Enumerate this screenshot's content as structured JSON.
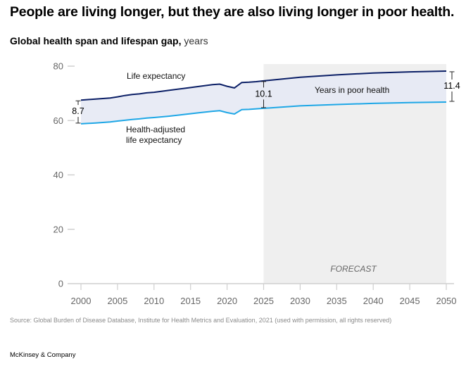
{
  "title": "People are living longer, but they are also living longer in poor health.",
  "subtitle": {
    "bold": "Global health span and lifespan gap,",
    "unit": " years"
  },
  "source": "Source: Global Burden of Disease Database, Institute for Health Metrics and Evaluation, 2021 (used with permission, all rights reserved)",
  "brand": "McKinsey & Company",
  "colors": {
    "life_expectancy": "#0b1f66",
    "hale": "#1ea7e6",
    "gap_fill": "#e6e9f4",
    "forecast_bg": "#efefef"
  },
  "chart_data": {
    "type": "area",
    "title": "Global health span and lifespan gap",
    "xlabel": "",
    "ylabel": "years",
    "xlim": [
      2000,
      2050
    ],
    "ylim": [
      0,
      80
    ],
    "x_ticks": [
      2000,
      2005,
      2010,
      2015,
      2020,
      2025,
      2030,
      2035,
      2040,
      2045,
      2050
    ],
    "y_ticks": [
      0,
      20,
      40,
      60,
      80
    ],
    "grid": false,
    "forecast_region": {
      "from": 2025,
      "to": 2050,
      "label": "FORECAST"
    },
    "x": [
      2000,
      2002,
      2004,
      2005,
      2006,
      2007,
      2008,
      2009,
      2010,
      2012,
      2014,
      2016,
      2018,
      2019,
      2020,
      2021,
      2022,
      2023,
      2024,
      2025,
      2030,
      2035,
      2040,
      2045,
      2050
    ],
    "series": [
      {
        "name": "Life expectancy",
        "values": [
          67.5,
          67.9,
          68.3,
          68.7,
          69.2,
          69.6,
          69.8,
          70.2,
          70.4,
          71.1,
          71.8,
          72.5,
          73.2,
          73.4,
          72.6,
          72.0,
          74.0,
          74.1,
          74.3,
          74.6,
          75.9,
          76.8,
          77.5,
          77.9,
          78.2
        ]
      },
      {
        "name": "Health-adjusted life expectancy",
        "values": [
          58.8,
          59.1,
          59.5,
          59.8,
          60.1,
          60.4,
          60.6,
          60.9,
          61.1,
          61.6,
          62.2,
          62.8,
          63.4,
          63.6,
          62.9,
          62.4,
          64.0,
          64.1,
          64.3,
          64.5,
          65.4,
          65.9,
          66.3,
          66.6,
          66.8
        ]
      }
    ],
    "gap_annotations": [
      {
        "year": 2000,
        "value": "8.7"
      },
      {
        "year": 2025,
        "value": "10.1"
      },
      {
        "year": 2050,
        "value": "11.4"
      }
    ],
    "annotations": {
      "life_expectancy": "Life expectancy",
      "hale_line1": "Health-adjusted",
      "hale_line2": "life expectancy",
      "gap": "Years in poor health"
    }
  }
}
